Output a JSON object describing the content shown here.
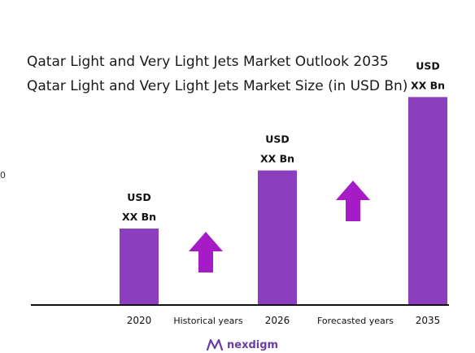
{
  "title": {
    "line1": "Qatar Light and Very Light Jets Market Outlook 2035",
    "line2": "Qatar Light and Very Light Jets Market Size (in USD Bn)"
  },
  "colors": {
    "bar": "#8B3FBF",
    "arrow": "#A51CC6",
    "axis": "#111111",
    "logo": "#6B3FA0"
  },
  "chart_data": {
    "type": "bar",
    "title": "Qatar Light and Very Light Jets Market Size (in USD Bn)",
    "categories": [
      "2020",
      "2026",
      "2035"
    ],
    "values": [
      1.0,
      1.76,
      2.72
    ],
    "value_labels": [
      [
        "USD",
        "XX Bn"
      ],
      [
        "USD",
        "XX Bn"
      ],
      [
        "USD",
        "XX Bn"
      ]
    ],
    "ylim": [
      0,
      3
    ],
    "grid": false,
    "legend": "none",
    "annotations": [
      {
        "text": "Historical years",
        "between": [
          "2020",
          "2026"
        ],
        "icon": "up-arrow-icon"
      },
      {
        "text": "Forecasted years",
        "between": [
          "2026",
          "2035"
        ],
        "icon": "up-arrow-icon"
      }
    ]
  },
  "logo": {
    "text": "nexdigm",
    "icon": "nexdigm-logo-icon"
  }
}
